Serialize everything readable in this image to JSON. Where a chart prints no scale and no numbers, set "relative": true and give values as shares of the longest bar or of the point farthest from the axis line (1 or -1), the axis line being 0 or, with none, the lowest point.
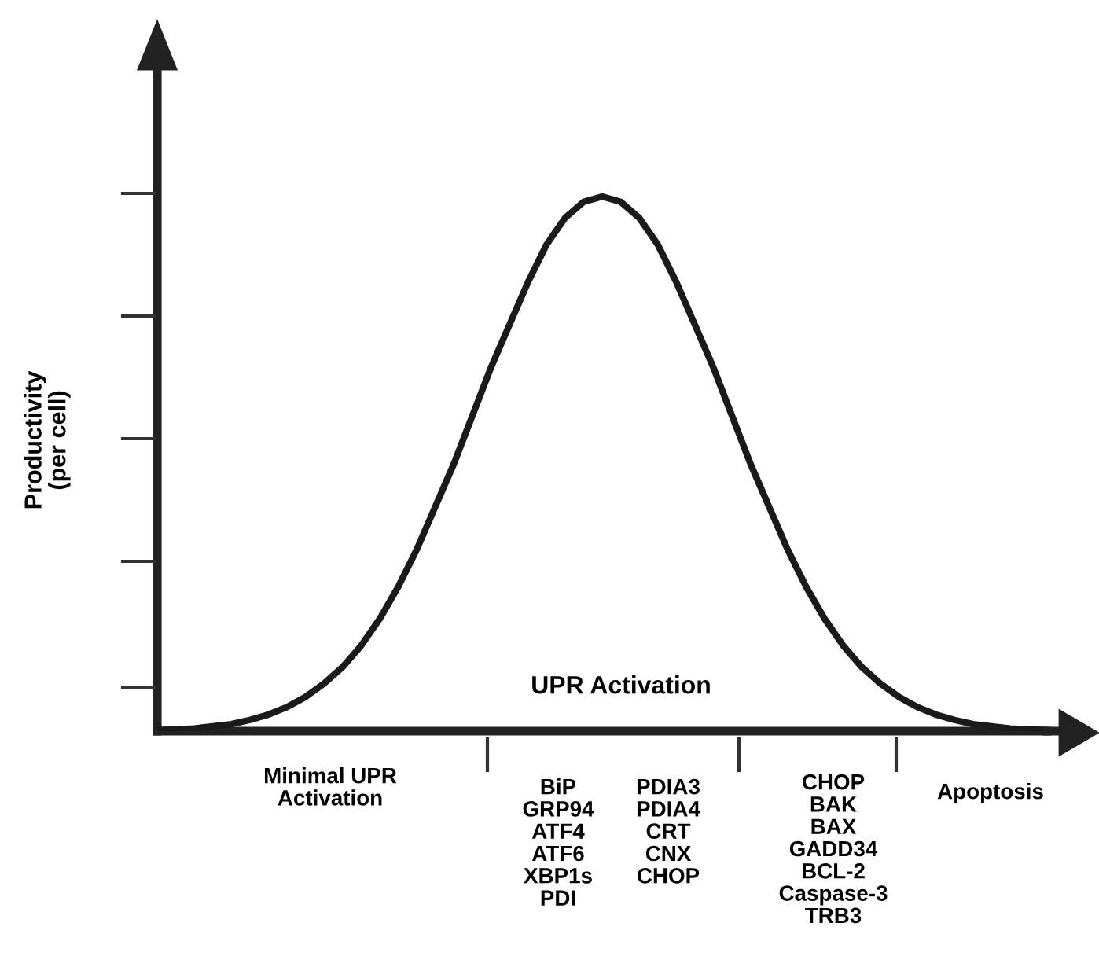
{
  "chart_data": {
    "type": "line",
    "relative": true,
    "xlabel": "UPR Activation",
    "ylabel": "Productivity\n(per cell)",
    "categories": [
      null,
      null,
      null,
      null,
      null,
      null,
      null,
      null,
      null,
      null,
      null,
      null,
      null,
      null,
      null,
      null,
      null,
      null,
      null,
      null,
      null,
      null,
      null,
      null,
      null,
      null,
      null,
      null,
      null,
      null,
      null,
      null,
      null,
      null,
      null,
      null,
      null,
      null,
      null,
      null,
      null,
      null,
      null,
      null,
      null,
      null,
      null,
      null,
      null
    ],
    "series": [
      {
        "color": "#1a1a1a",
        "values": [
          0.002,
          0.003,
          0.005,
          0.009,
          0.013,
          0.021,
          0.031,
          0.045,
          0.064,
          0.089,
          0.12,
          0.16,
          0.21,
          0.27,
          0.34,
          0.42,
          0.5,
          0.59,
          0.68,
          0.76,
          0.84,
          0.91,
          0.96,
          0.99,
          1,
          0.99,
          0.96,
          0.91,
          0.84,
          0.76,
          0.68,
          0.59,
          0.5,
          0.42,
          0.34,
          0.27,
          0.21,
          0.16,
          0.12,
          0.089,
          0.064,
          0.045,
          0.031,
          0.021,
          0.013,
          0.009,
          0.005,
          0.003,
          0.002
        ]
      }
    ],
    "marker": "none",
    "line_style": "solid",
    "legend": false,
    "tick_labels": false,
    "annotations": [
      "Minimal UPR\nActivation",
      "BiP\nGRP94\nATF4\nATF6\nXBP1s\nPDI",
      "PDIA3\nPDIA4\nCRT\nCNX\nCHOP",
      "CHOP\nBAK\nBAX\nGADD34\nBCL-2\nCaspase-3\nTRB3",
      "Apoptosis"
    ]
  }
}
